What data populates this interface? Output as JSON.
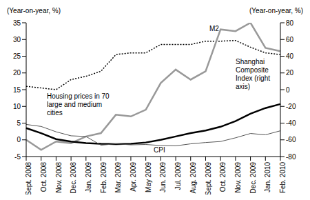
{
  "chart_data": {
    "type": "line",
    "y_label": "(Year-on-year, %)",
    "y2_label": "(Year-on-year, %)",
    "categories": [
      "Sept. 2008",
      "Oct. 2008",
      "Nov. 2008",
      "Dec. 2008",
      "Jan. 2009",
      "Feb. 2009",
      "Mar. 2009",
      "Apr. 2009",
      "May 2009",
      "Jun. 2009",
      "Jul. 2009",
      "Aug. 2009",
      "Sept. 2009",
      "Oct. 2009",
      "Nov. 2009",
      "Dec. 2009",
      "Jan. 2010",
      "Feb. 2010"
    ],
    "ylim": [
      -5,
      35
    ],
    "yticks": [
      -5,
      0,
      5,
      10,
      15,
      20,
      25,
      30,
      35
    ],
    "y2lim": [
      -80,
      80
    ],
    "y2ticks": [
      -80,
      -60,
      -40,
      -20,
      0,
      20,
      40,
      60,
      80
    ],
    "grid": false,
    "series": [
      {
        "name": "M2",
        "color": "#000000",
        "line_style": "dotted",
        "values": [
          16,
          15.5,
          15,
          18,
          19,
          20.5,
          25.5,
          26,
          26,
          28.5,
          28.5,
          28.5,
          29.5,
          29.5,
          29.7,
          27.7,
          26,
          25.5
        ]
      },
      {
        "name": "Shanghai Composite Index (right axis)",
        "color": "#999999",
        "line_style": "solid",
        "axis": "y2",
        "values": [
          -60,
          -72,
          -62,
          -64,
          -56,
          -52,
          -30,
          -32,
          -24,
          8,
          24,
          12,
          22,
          72,
          70,
          80,
          50,
          46
        ]
      },
      {
        "name": "Housing prices in 70 large and medium cities",
        "color": "#000000",
        "line_style": "solid",
        "values": [
          3.5,
          2,
          0.2,
          -0.5,
          -1,
          -1.2,
          -1.3,
          -1.2,
          -0.8,
          0,
          1,
          2,
          2.8,
          3.9,
          5.6,
          7.8,
          9.5,
          10.7
        ]
      },
      {
        "name": "CPI",
        "color": "#555555",
        "line_style": "solid",
        "values": [
          4.6,
          4,
          2.4,
          1.2,
          1,
          -1.6,
          -1.2,
          -1.5,
          -1.4,
          -1.7,
          -1.8,
          -1.2,
          -0.8,
          -0.5,
          0.6,
          1.9,
          1.5,
          2.7
        ]
      }
    ]
  }
}
